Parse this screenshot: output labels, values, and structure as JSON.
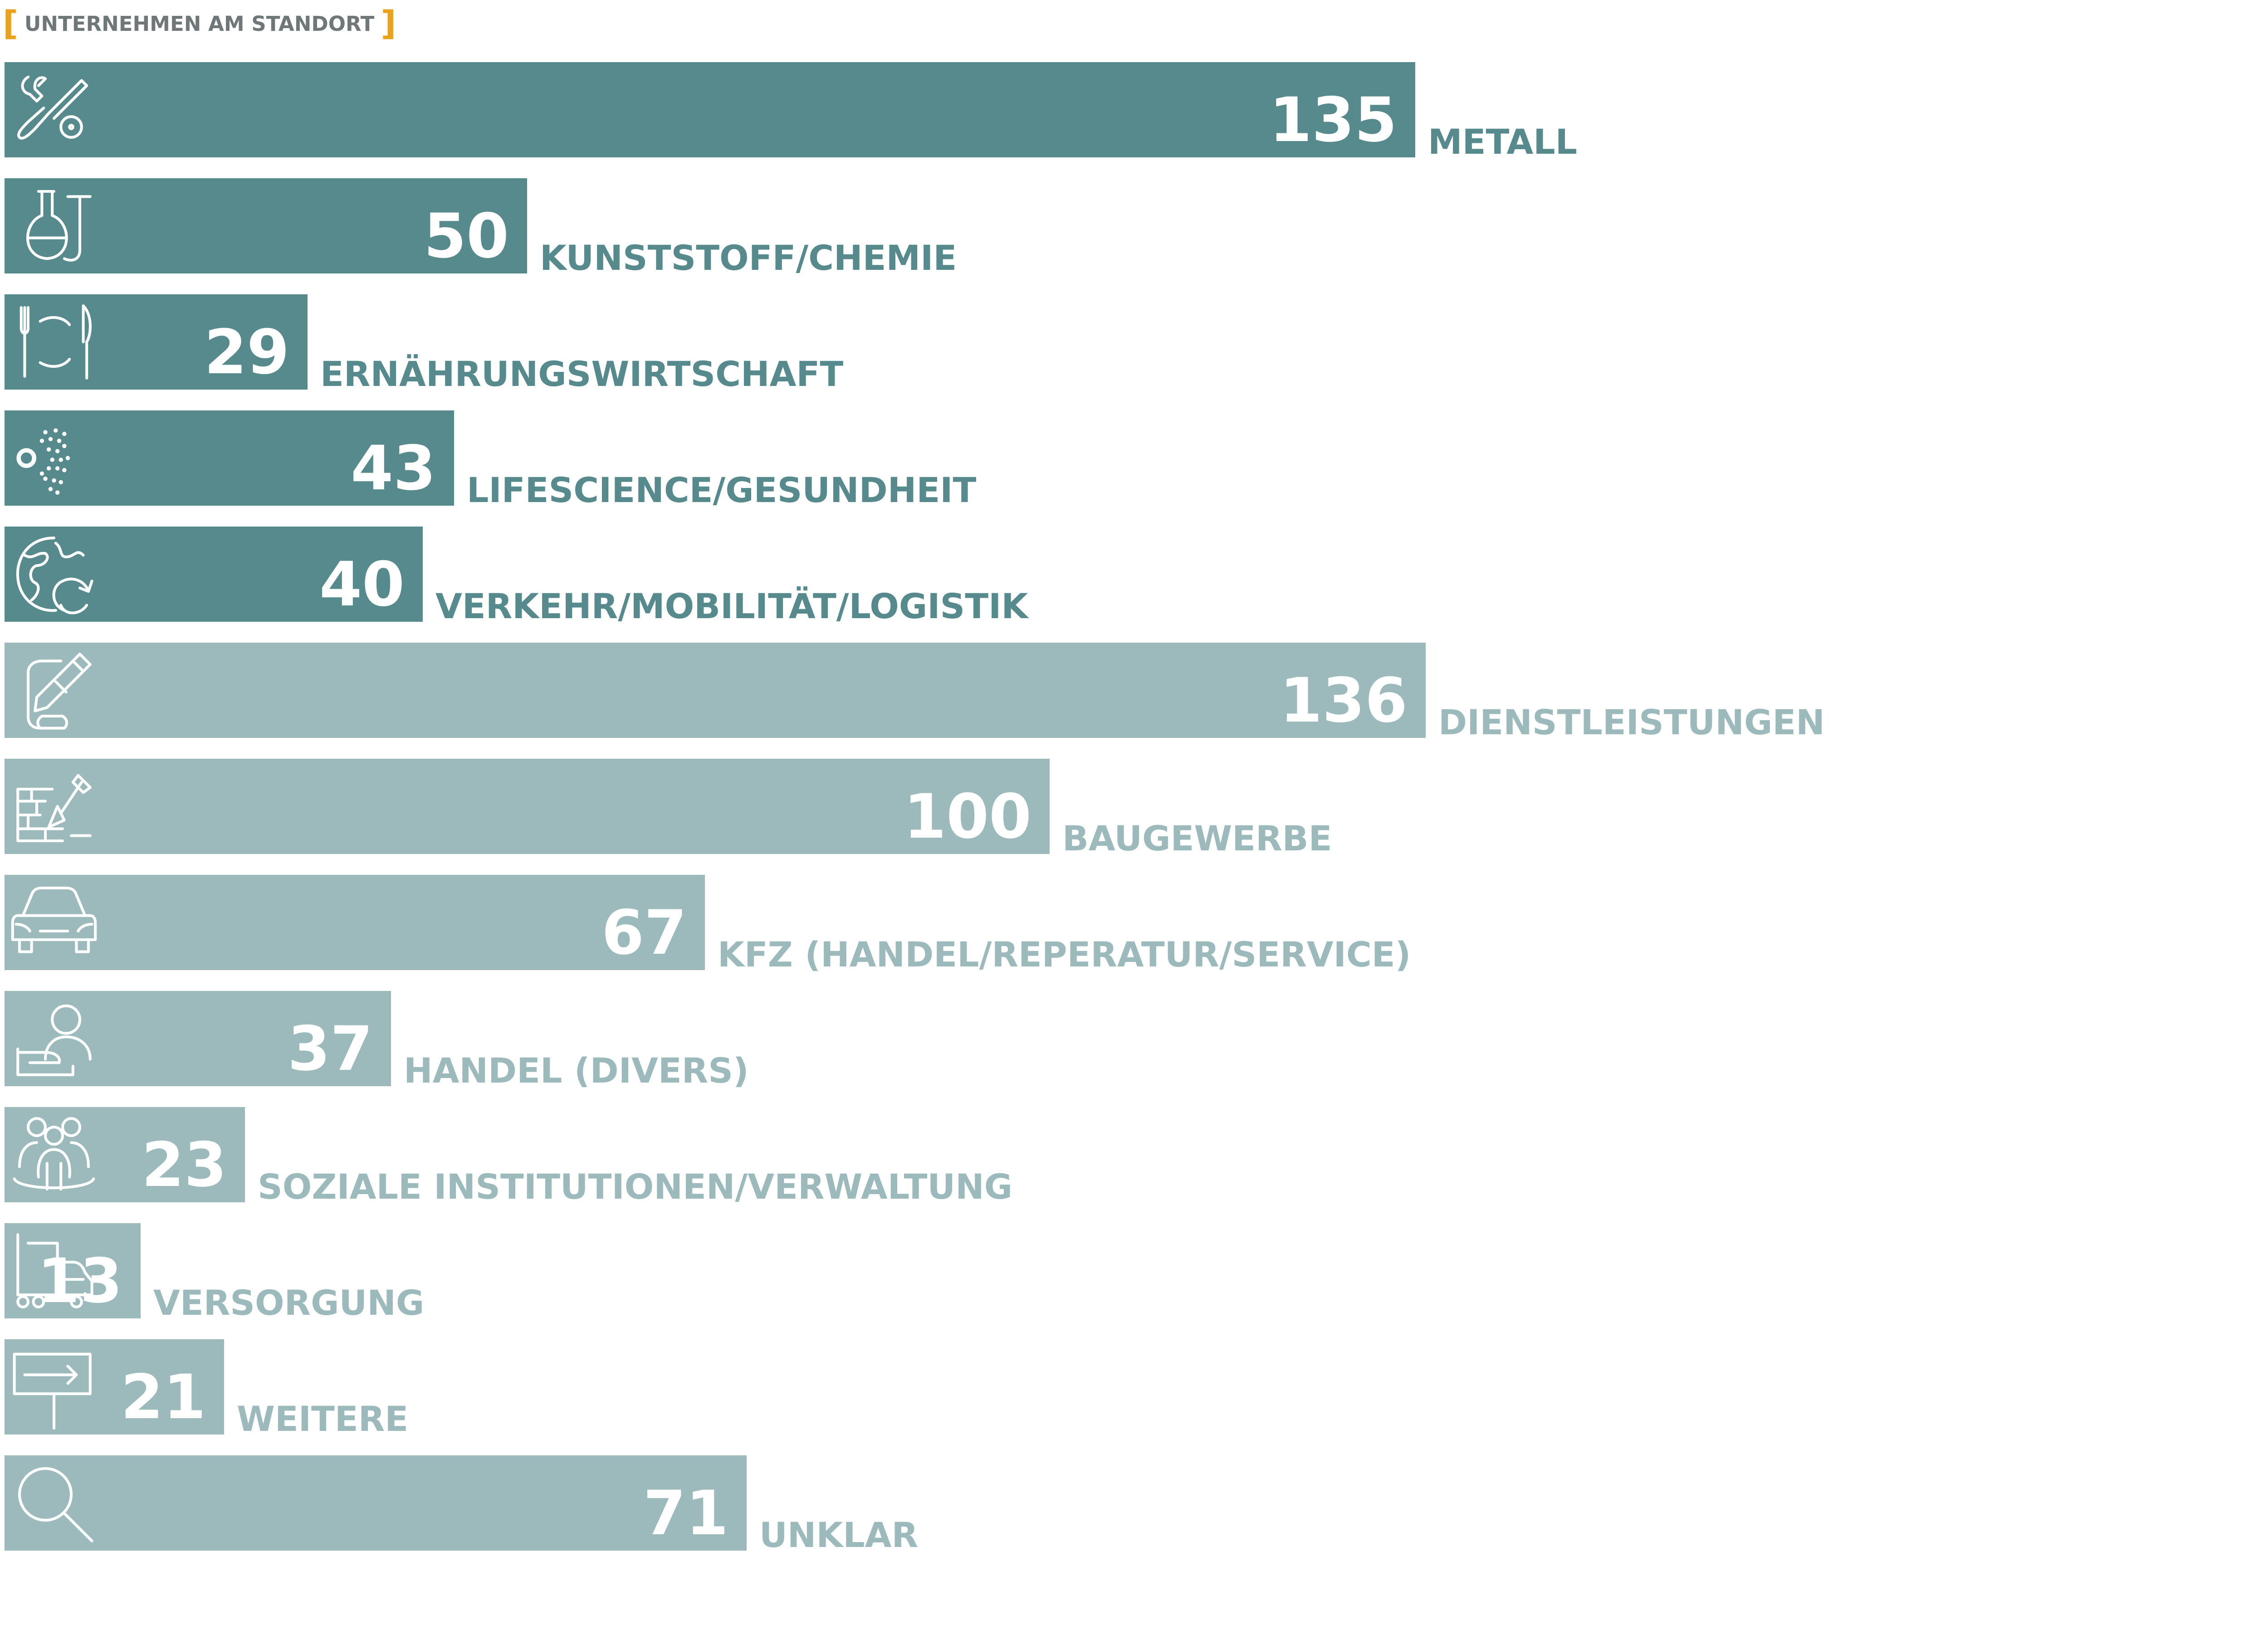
{
  "title": "UNTERNEHMEN AM STANDORT",
  "colors": {
    "dark": "#568a8c",
    "light": "#9cbabb",
    "bracket": "#e8a21c",
    "title": "#6f7778"
  },
  "chart_data": {
    "type": "bar",
    "orientation": "horizontal",
    "title": "UNTERNEHMEN AM STANDORT",
    "xlim": [
      0,
      140
    ],
    "categories": [
      "METALL",
      "KUNSTSTOFF/CHEMIE",
      "ERNÄHRUNGSWIRTSCHAFT",
      "LIFESCIENCE/GESUNDHEIT",
      "VERKEHR/MOBILITÄT/LOGISTIK",
      "DIENSTLEISTUNGEN",
      "BAUGEWERBE",
      "KFZ (HANDEL/REPERATUR/SERVICE)",
      "HANDEL (DIVERS)",
      "SOZIALE INSTITUTIONEN/VERWALTUNG",
      "VERSORGUNG",
      "WEITERE",
      "UNKLAR"
    ],
    "values": [
      135,
      50,
      29,
      43,
      40,
      136,
      100,
      67,
      37,
      23,
      13,
      21,
      71
    ],
    "bar_colors": [
      "dark",
      "dark",
      "dark",
      "dark",
      "dark",
      "light",
      "light",
      "light",
      "light",
      "light",
      "light",
      "light",
      "light"
    ],
    "icons": [
      "wrench-screwdriver-icon",
      "flask-icon",
      "plate-cutlery-icon",
      "dna-dots-icon",
      "globe-arrows-icon",
      "document-pen-icon",
      "brick-trowel-icon",
      "car-icon",
      "person-hand-icon",
      "group-people-icon",
      "truck-icon",
      "signpost-icon",
      "magnifier-icon"
    ],
    "grid": false,
    "legend": "none"
  }
}
